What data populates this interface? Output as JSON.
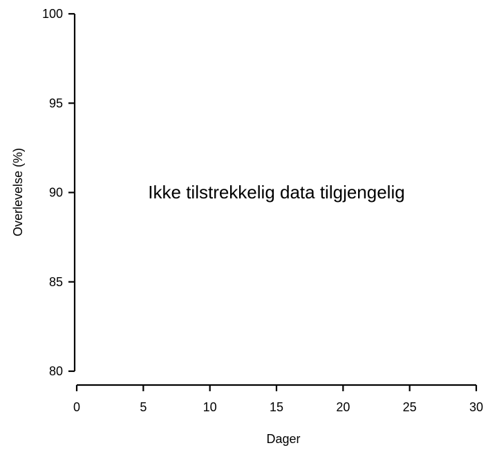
{
  "chart_data": {
    "type": "line",
    "title": "",
    "xlabel": "Dager",
    "ylabel": "Overlevelse (%)",
    "xlim": [
      0,
      30
    ],
    "ylim": [
      80,
      100
    ],
    "x_ticks": [
      "0",
      "5",
      "10",
      "15",
      "20",
      "25",
      "30"
    ],
    "y_ticks": [
      "80",
      "85",
      "90",
      "95",
      "100"
    ],
    "series": [],
    "annotations": [
      {
        "text": "Ikke tilstrekkelig data tilgjengelig",
        "x": 15,
        "y": 90
      }
    ],
    "grid": false,
    "legend": "none"
  }
}
